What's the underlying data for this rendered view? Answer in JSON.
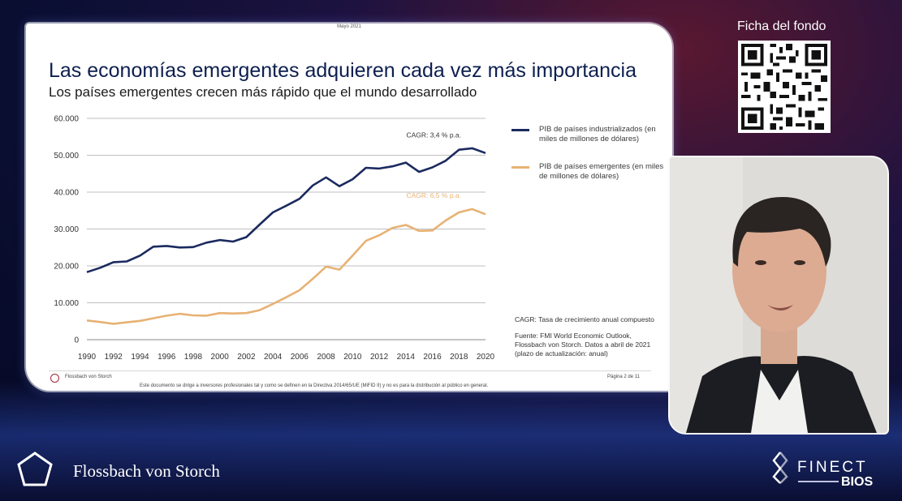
{
  "slide": {
    "date": "Mayo 2021",
    "title": "Las economías emergentes adquieren cada vez más importancia",
    "subtitle": "Los países emergentes crecen más rápido que el mundo desarrollado",
    "legend": [
      {
        "label": "PIB de países industrializados (en miles de millones de dólares)",
        "color": "#1b2a5f"
      },
      {
        "label": "PIB de países emergentes (en miles de millones de dólares)",
        "color": "#e7b274"
      }
    ],
    "cagr_note": "CAGR: Tasa de crecimiento anual compuesto",
    "source": "Fuente: FMI World Economic Outlook, Flossbach von Storch. Datos a abril de 2021 (plazo de actualización: anual)",
    "footer_brand": "Flossbach von Storch",
    "disclaimer": "Este documento se dirige a inversores profesionales tal y como se definen en la Directiva 2014/65/UE (MiFID II) y no es para la distribución al público en general.",
    "page": "Página 2 de 11"
  },
  "chart_data": {
    "type": "line",
    "x": [
      1990,
      1991,
      1992,
      1993,
      1994,
      1995,
      1996,
      1997,
      1998,
      1999,
      2000,
      2001,
      2002,
      2003,
      2004,
      2005,
      2006,
      2007,
      2008,
      2009,
      2010,
      2011,
      2012,
      2013,
      2014,
      2015,
      2016,
      2017,
      2018,
      2019,
      2020
    ],
    "series": [
      {
        "name": "PIB de países industrializados",
        "color": "#1b2a5f",
        "values": [
          18300,
          19500,
          21000,
          21200,
          22800,
          25200,
          25400,
          25000,
          25100,
          26300,
          27000,
          26600,
          27800,
          31200,
          34500,
          36300,
          38200,
          41800,
          44000,
          41600,
          43500,
          46600,
          46400,
          47000,
          48000,
          45500,
          46700,
          48500,
          51500,
          51900,
          50600
        ],
        "annotation": "CAGR: 3,4 % p.a."
      },
      {
        "name": "PIB de países emergentes",
        "color": "#e7b274",
        "values": [
          5200,
          4800,
          4300,
          4700,
          5100,
          5800,
          6500,
          7000,
          6600,
          6500,
          7200,
          7100,
          7200,
          8000,
          9700,
          11500,
          13400,
          16500,
          19800,
          19000,
          22800,
          26800,
          28300,
          30300,
          31100,
          29500,
          29600,
          32300,
          34500,
          35400,
          34000
        ],
        "annotation": "CAGR: 6,5 % p.a."
      }
    ],
    "y_ticks": [
      "0",
      "10.000",
      "20.000",
      "30.000",
      "40.000",
      "50.000",
      "60.000"
    ],
    "x_ticks": [
      "1990",
      "1992",
      "1994",
      "1996",
      "1998",
      "2000",
      "2002",
      "2004",
      "2006",
      "2008",
      "2010",
      "2012",
      "2014",
      "2016",
      "2018",
      "2020"
    ],
    "ylim": [
      0,
      60000
    ],
    "grid": true,
    "title": "",
    "xlabel": "",
    "ylabel": ""
  },
  "sidebar": {
    "qr_label": "Ficha del fondo"
  },
  "branding": {
    "company": "Flossbach von Storch",
    "platform": "FINECT",
    "platform_sub": "BIOS"
  }
}
